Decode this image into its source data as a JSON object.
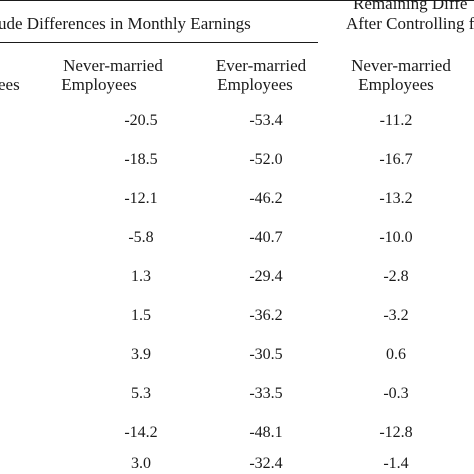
{
  "header": {
    "group_left": "ude Differences in Monthly Earnings",
    "group_right_line1": "Remaining Diffe",
    "group_right_line2": "After Controlling f"
  },
  "columns": [
    {
      "line1": "",
      "line2": "ees"
    },
    {
      "line1": "Never-married",
      "line2": "Employees"
    },
    {
      "line1": "Ever-married",
      "line2": "Employees"
    },
    {
      "line1": "Never-married",
      "line2": "Employees"
    }
  ],
  "rows": [
    [
      "-20.5",
      "-53.4",
      "-11.2"
    ],
    [
      "-18.5",
      "-52.0",
      "-16.7"
    ],
    [
      "-12.1",
      "-46.2",
      "-13.2"
    ],
    [
      "-5.8",
      "-40.7",
      "-10.0"
    ],
    [
      "1.3",
      "-29.4",
      "-2.8"
    ],
    [
      "1.5",
      "-36.2",
      "-3.2"
    ],
    [
      "3.9",
      "-30.5",
      "0.6"
    ],
    [
      "5.3",
      "-33.5",
      "-0.3"
    ],
    [
      "-14.2",
      "-48.1",
      "-12.8"
    ],
    [
      "3.0",
      "-32.4",
      "-1.4"
    ]
  ]
}
